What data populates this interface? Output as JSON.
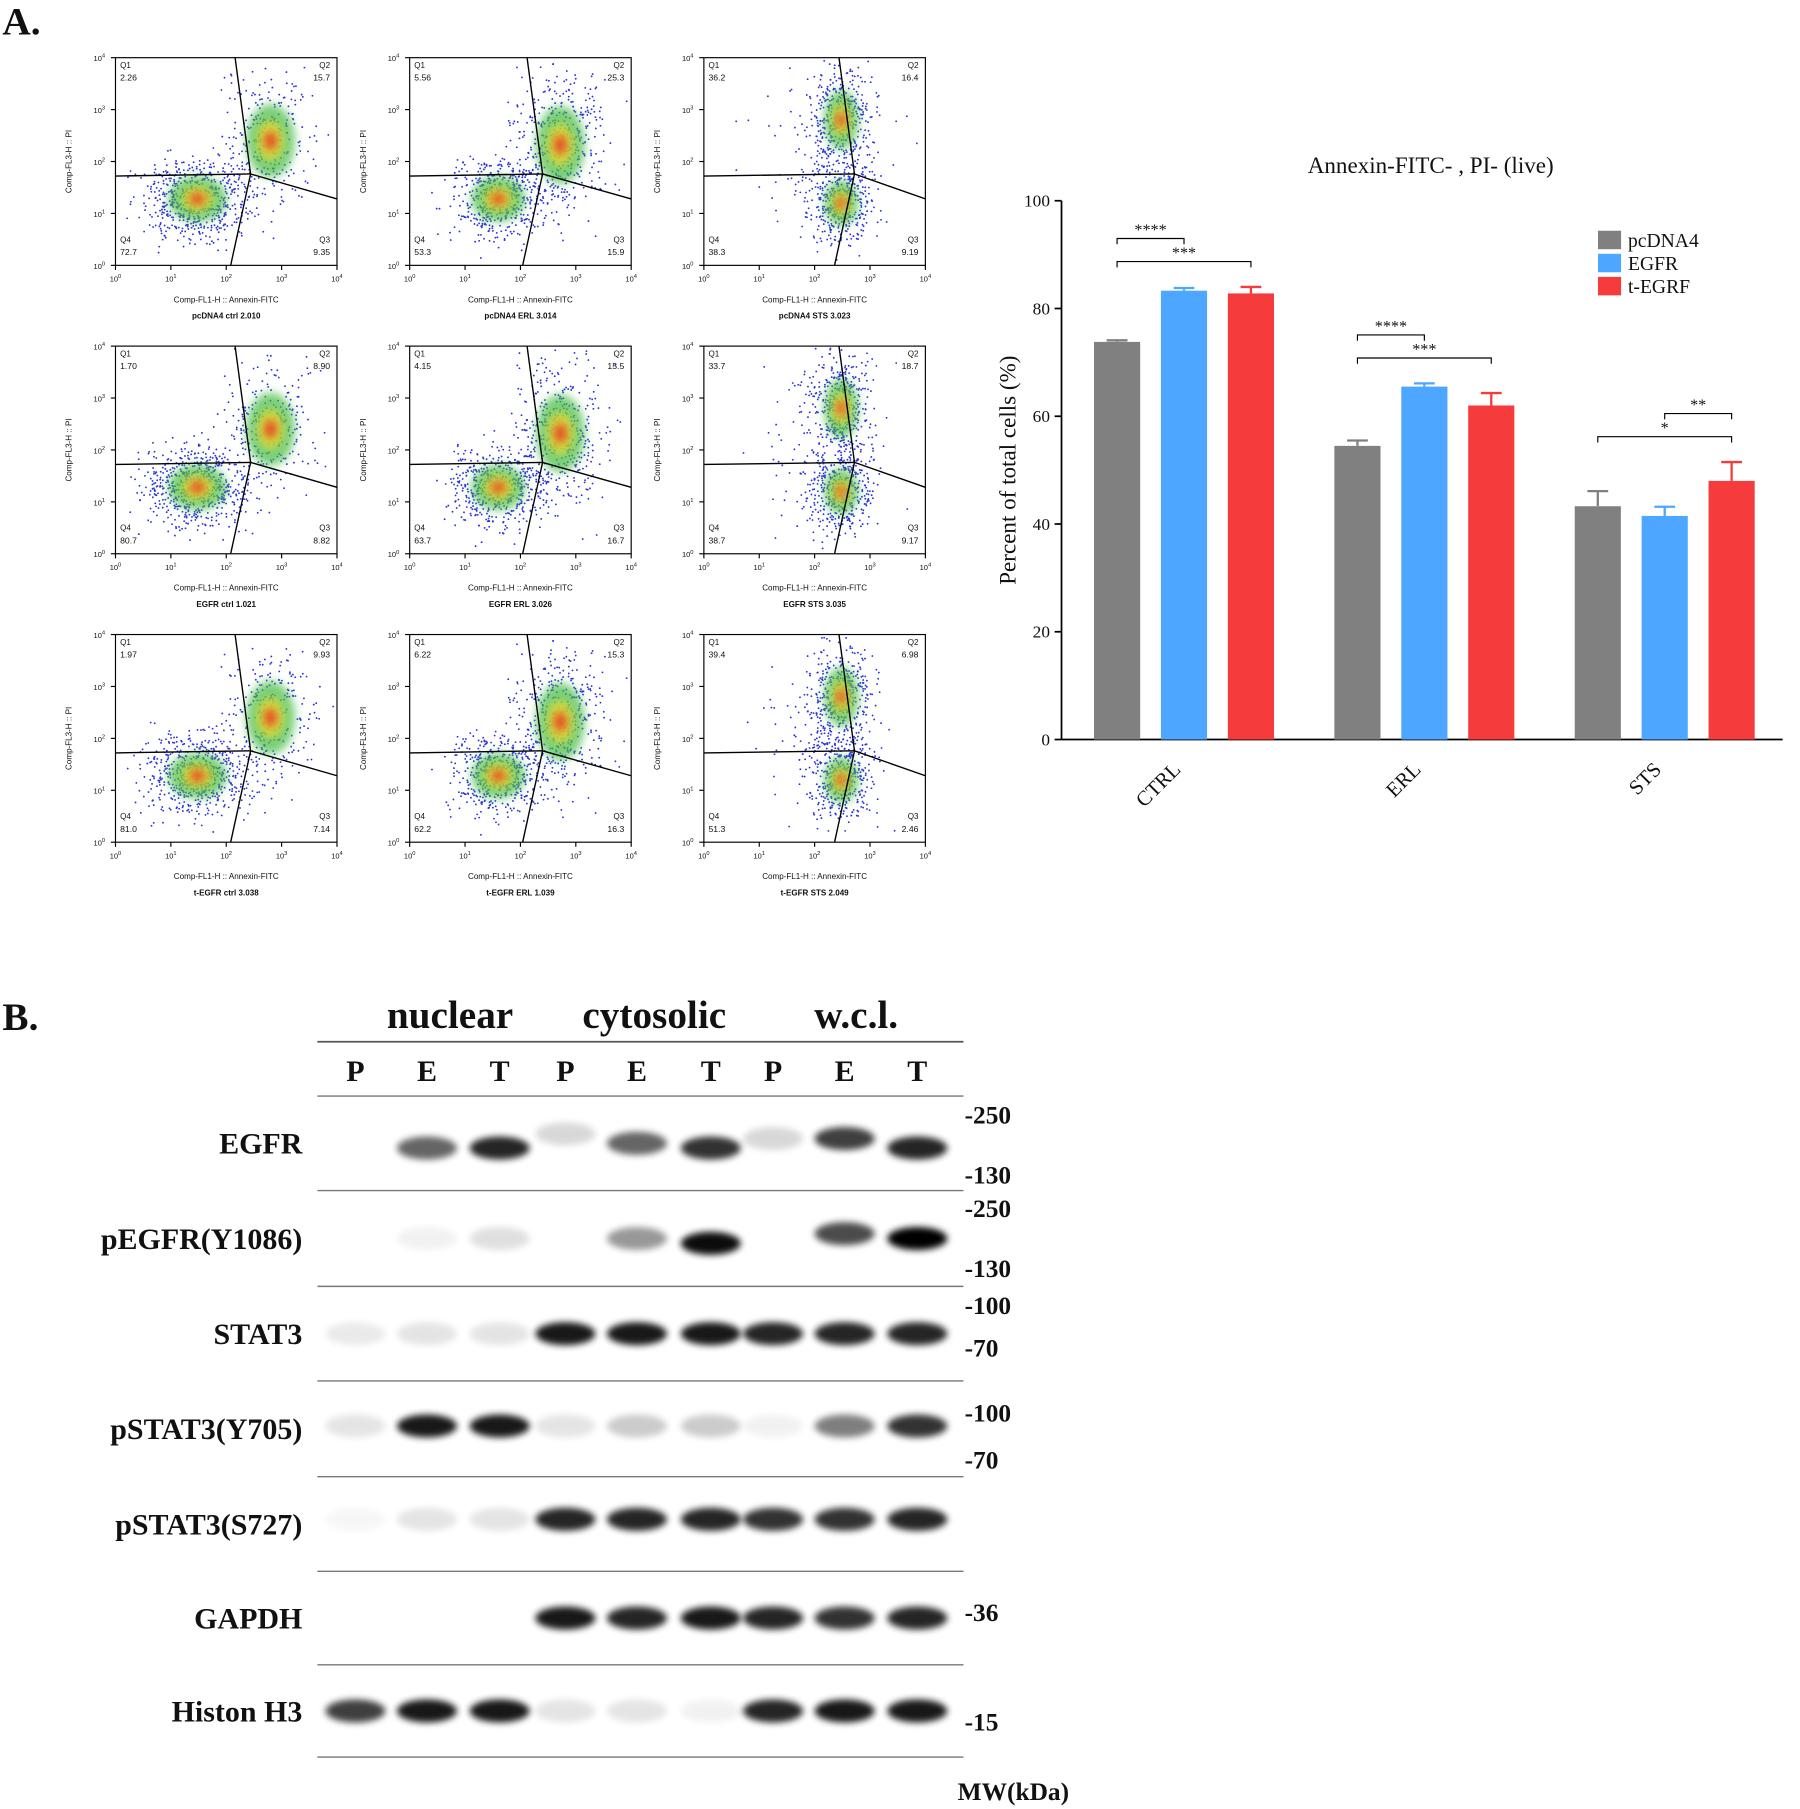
{
  "panels": {
    "a_label": "A.",
    "b_label": "B."
  },
  "flow": {
    "xlabel": "Comp-FL1-H :: Annexin-FITC",
    "ylabel": "Comp-FL3-H :: PI",
    "tick_base": "10",
    "tick_exponents": [
      "0",
      "1",
      "2",
      "3",
      "4"
    ],
    "quadrant_names": [
      "Q1",
      "Q2",
      "Q3",
      "Q4"
    ],
    "plots": [
      {
        "title": "pcDNA4 ctrl 2.010",
        "quadrants": [
          "2.26",
          "15.7",
          "9.35",
          "72.7"
        ]
      },
      {
        "title": "pcDNA4 ERL 3.014",
        "quadrants": [
          "5.56",
          "25.3",
          "15.9",
          "53.3"
        ]
      },
      {
        "title": "pcDNA4 STS 3.023",
        "quadrants": [
          "36.2",
          "16.4",
          "9.19",
          "38.3"
        ]
      },
      {
        "title": "EGFR ctrl 1.021",
        "quadrants": [
          "1.70",
          "8.90",
          "8.82",
          "80.7"
        ]
      },
      {
        "title": "EGFR ERL 3.026",
        "quadrants": [
          "4.15",
          "15.5",
          "16.7",
          "63.7"
        ]
      },
      {
        "title": "EGFR STS 3.035",
        "quadrants": [
          "33.7",
          "18.7",
          "9.17",
          "38.7"
        ]
      },
      {
        "title": "t-EGFR ctrl 3.038",
        "quadrants": [
          "1.97",
          "9.93",
          "7.14",
          "81.0"
        ]
      },
      {
        "title": "t-EGFR ERL 1.039",
        "quadrants": [
          "6.22",
          "15.3",
          "16.3",
          "62.2"
        ]
      },
      {
        "title": "t-EGFR STS 2.049",
        "quadrants": [
          "39.4",
          "6.98",
          "2.46",
          "51.3"
        ]
      }
    ]
  },
  "chart_data": {
    "type": "bar",
    "title": "Annexin-FITC- , PI- (live)",
    "ylabel": "Percent of total cells (%)",
    "categories": [
      "CTRL",
      "ERL",
      "STS"
    ],
    "series": [
      {
        "name": "pcDNA4",
        "color": "#808080",
        "values": [
          73.8,
          54.5,
          43.3
        ],
        "errors": [
          0.3,
          1.0,
          2.8
        ]
      },
      {
        "name": "EGFR",
        "color": "#4da6ff",
        "values": [
          83.3,
          65.5,
          41.5
        ],
        "errors": [
          0.5,
          0.6,
          1.7
        ]
      },
      {
        "name": "t-EGRF",
        "color": "#f53b3b",
        "values": [
          82.8,
          62.0,
          48.0
        ],
        "errors": [
          1.2,
          2.3,
          3.5
        ]
      }
    ],
    "ylim": [
      0,
      100
    ],
    "yticks": [
      0,
      20,
      40,
      60,
      80,
      100
    ],
    "significance": [
      {
        "category": "CTRL",
        "from": "pcDNA4",
        "to": "EGFR",
        "label": "****"
      },
      {
        "category": "CTRL",
        "from": "pcDNA4",
        "to": "t-EGRF",
        "label": "***"
      },
      {
        "category": "ERL",
        "from": "pcDNA4",
        "to": "EGFR",
        "label": "****"
      },
      {
        "category": "ERL",
        "from": "pcDNA4",
        "to": "t-EGRF",
        "label": "***"
      },
      {
        "category": "STS",
        "from": "EGFR",
        "to": "t-EGRF",
        "label": "**"
      },
      {
        "category": "STS",
        "from": "pcDNA4",
        "to": "t-EGRF",
        "label": "*"
      }
    ],
    "legend": "top-right"
  },
  "blot": {
    "groups": [
      "nuclear",
      "cytosolic",
      "w.c.l."
    ],
    "lanes": [
      "P",
      "E",
      "T",
      "P",
      "E",
      "T",
      "P",
      "E",
      "T"
    ],
    "rows": [
      {
        "label": "EGFR",
        "mw": [
          "-250",
          "-130"
        ]
      },
      {
        "label": "pEGFR(Y1086)",
        "mw": [
          "-250",
          "-130"
        ]
      },
      {
        "label": "STAT3",
        "mw": [
          "-100",
          "-70"
        ]
      },
      {
        "label": "pSTAT3(Y705)",
        "mw": [
          "-100",
          "-70"
        ]
      },
      {
        "label": "pSTAT3(S727)",
        "mw": []
      },
      {
        "label": "GAPDH",
        "mw": [
          "-36"
        ]
      },
      {
        "label": "Histon H3",
        "mw": [
          "-15"
        ]
      }
    ],
    "mw_label": "MW(kDa)"
  }
}
